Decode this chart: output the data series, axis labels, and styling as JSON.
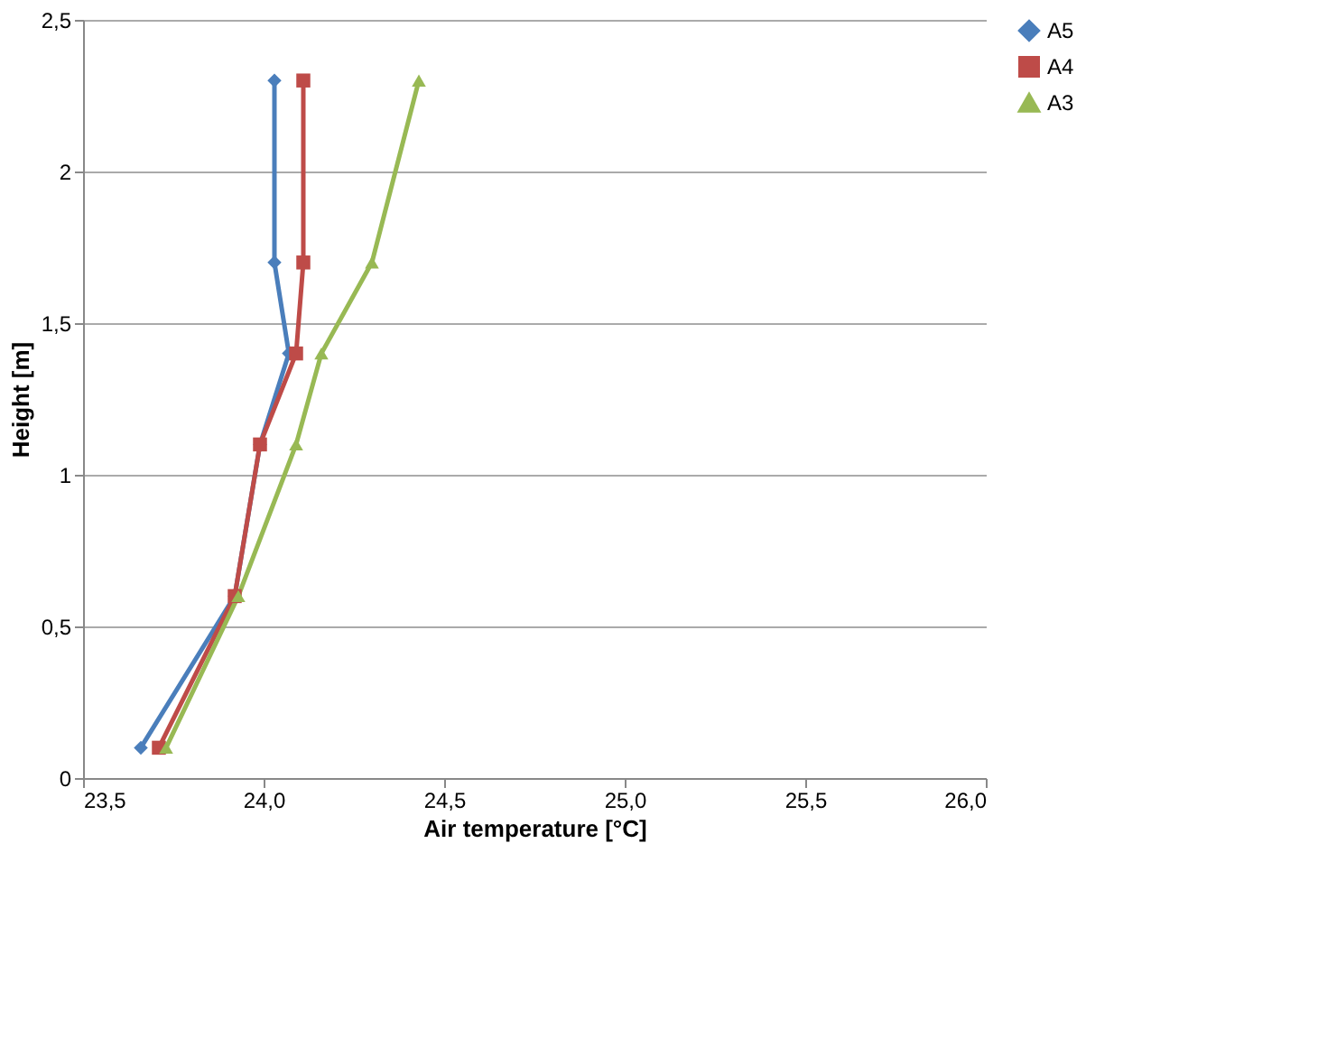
{
  "chart_data": {
    "type": "line",
    "xlabel": "Air temperature [°C]",
    "ylabel": "Height [m]",
    "xlim": [
      23.5,
      26.0
    ],
    "ylim": [
      0,
      2.5
    ],
    "xticks": [
      {
        "value": 23.5,
        "label": "23,5"
      },
      {
        "value": 24.0,
        "label": "24,0"
      },
      {
        "value": 24.5,
        "label": "24,5"
      },
      {
        "value": 25.0,
        "label": "25,0"
      },
      {
        "value": 25.5,
        "label": "25,5"
      },
      {
        "value": 26.0,
        "label": "26,0"
      }
    ],
    "yticks": [
      0,
      {
        "value": 0.5,
        "label": "0,5"
      },
      1,
      {
        "value": 1.5,
        "label": "1,5"
      },
      2,
      {
        "value": 2.5,
        "label": "2,5"
      }
    ],
    "grid": "y",
    "legend": "right",
    "series": [
      {
        "name": "A5",
        "color": "#4a7ebb",
        "marker": "diamond",
        "x": [
          23.66,
          23.92,
          23.99,
          24.07,
          24.03,
          24.03
        ],
        "values": [
          0.1,
          0.6,
          1.1,
          1.4,
          1.7,
          2.3
        ]
      },
      {
        "name": "A4",
        "color": "#be4b48",
        "marker": "square",
        "x": [
          23.71,
          23.92,
          23.99,
          24.09,
          24.11,
          24.11
        ],
        "values": [
          0.1,
          0.6,
          1.1,
          1.4,
          1.7,
          2.3
        ]
      },
      {
        "name": "A3",
        "color": "#98b954",
        "marker": "triangle",
        "x": [
          23.73,
          23.93,
          24.09,
          24.16,
          24.3,
          24.43
        ],
        "values": [
          0.1,
          0.6,
          1.1,
          1.4,
          1.7,
          2.3
        ]
      }
    ]
  }
}
